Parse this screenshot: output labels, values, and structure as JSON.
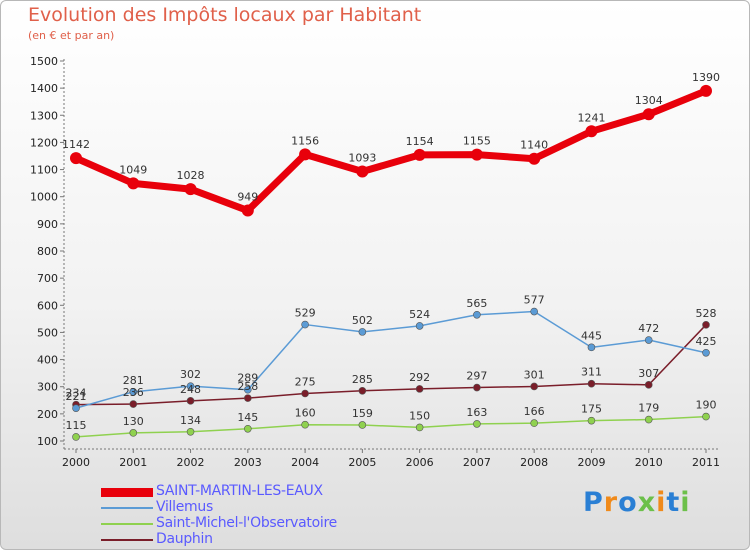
{
  "title": "Evolution des Impôts locaux par Habitant",
  "subtitle": "(en € et par an)",
  "logo": {
    "text": "Proxiti",
    "colors": [
      "#2a7fd4",
      "#f08a1a",
      "#2a7fd4",
      "#6cc04a",
      "#f08a1a",
      "#2a7fd4",
      "#6cc04a"
    ]
  },
  "chart_data": {
    "type": "line",
    "x": [
      "2000",
      "2001",
      "2002",
      "2003",
      "2004",
      "2005",
      "2006",
      "2007",
      "2008",
      "2009",
      "2010",
      "2011"
    ],
    "ylim": [
      100,
      1500
    ],
    "yticks": [
      100,
      200,
      300,
      400,
      500,
      600,
      700,
      800,
      900,
      1000,
      1100,
      1200,
      1300,
      1400,
      1500
    ],
    "grid": false,
    "legend_position": "bottom-left",
    "series": [
      {
        "name": "SAINT-MARTIN-LES-EAUX",
        "color": "#e8000b",
        "values": [
          1142,
          1049,
          1028,
          949,
          1156,
          1093,
          1154,
          1155,
          1140,
          1241,
          1304,
          1390
        ]
      },
      {
        "name": "Villemus",
        "color": "#5b9bd5",
        "values": [
          221,
          281,
          302,
          289,
          529,
          502,
          524,
          565,
          577,
          445,
          472,
          425
        ]
      },
      {
        "name": "Saint-Michel-l'Observatoire",
        "color": "#8fd14f",
        "values": [
          115,
          130,
          134,
          145,
          160,
          159,
          150,
          163,
          166,
          175,
          179,
          190
        ]
      },
      {
        "name": "Dauphin",
        "color": "#7a1e2a",
        "values": [
          234,
          236,
          248,
          258,
          275,
          285,
          292,
          297,
          301,
          311,
          307,
          528
        ]
      }
    ]
  }
}
